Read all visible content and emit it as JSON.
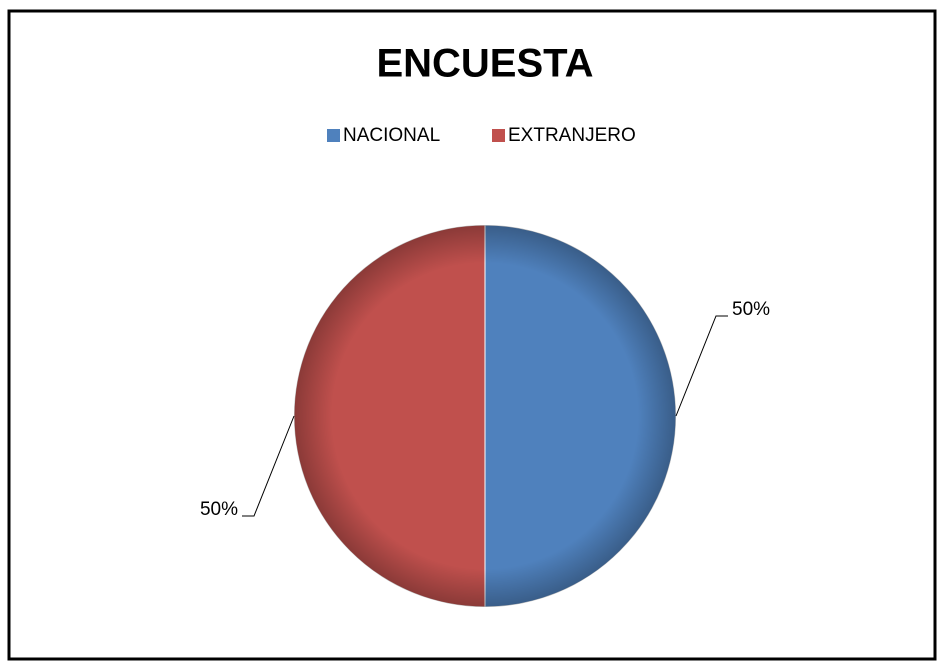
{
  "chart_data": {
    "type": "pie",
    "title": "ENCUESTA",
    "categories": [
      "NACIONAL",
      "EXTRANJERO"
    ],
    "values": [
      50,
      50
    ],
    "value_labels": [
      "50%",
      "50%"
    ],
    "colors": [
      "#4f81bd",
      "#c0504d"
    ],
    "legend": "top"
  }
}
